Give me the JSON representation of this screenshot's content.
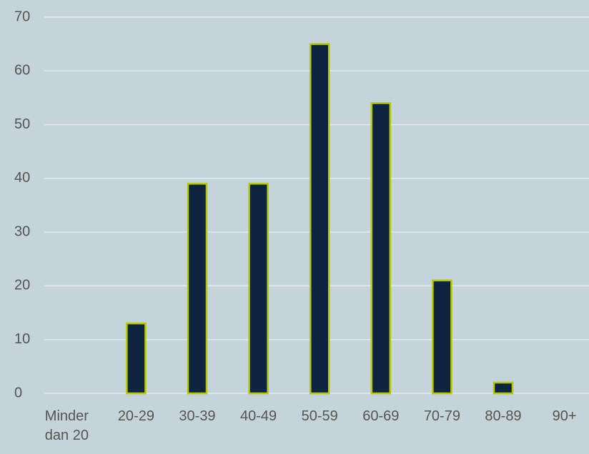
{
  "chart_data": {
    "type": "bar",
    "categories": [
      "Minder dan 20",
      "20-29",
      "30-39",
      "40-49",
      "50-59",
      "60-69",
      "70-79",
      "80-89",
      "90+"
    ],
    "values": [
      0,
      13,
      39,
      39,
      65,
      54,
      21,
      2,
      0
    ],
    "color": "#0d2340",
    "edge_color": "#b5c800",
    "ylim": [
      0,
      70
    ],
    "yticks": [
      0,
      10,
      20,
      30,
      40,
      50,
      60,
      70
    ],
    "grid": true
  }
}
